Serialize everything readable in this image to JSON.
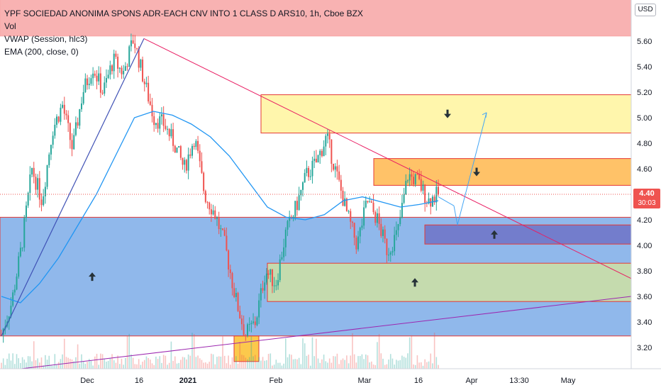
{
  "legend": {
    "title": "YPF SOCIEDAD ANONIMA SPONS ADR-EACH CNV INTO 1 CLASS D ARS10, 1h, Cboe BZX",
    "vol": "Vol",
    "vwap": "VWAP (Session, hlc3)",
    "ema": "EMA (200, close, 0)"
  },
  "currency_button": "USD",
  "last_price": {
    "price": "4.40",
    "countdown": "30:03"
  },
  "colors": {
    "up": "#26a69a",
    "down": "#ef5350",
    "ema": "#2196f3",
    "vwap": "#2196f3",
    "trendline_pink": "#e91e63",
    "trendline_purple": "#9c27b0",
    "trendline_navy": "#3f51b5",
    "zone_red": "#f7a5a5",
    "zone_yellow": "#fff59d",
    "zone_orange": "#ffb74d",
    "zone_blue": "#8ab4ea",
    "zone_indigo": "#6f72c7",
    "zone_olive": "#cfe0a3",
    "zone_yellow_small": "#fbc02d"
  },
  "chart_data": {
    "type": "candlestick",
    "ylim": [
      3.05,
      5.95
    ],
    "y_ticks": [
      "3.20",
      "3.40",
      "3.60",
      "3.80",
      "4.00",
      "4.20",
      "4.40",
      "4.60",
      "4.80",
      "5.00",
      "5.20",
      "5.40",
      "5.60"
    ],
    "x_ticks": [
      "Dec",
      "16",
      "2021",
      "Feb",
      "Mar",
      "16",
      "Apr",
      "13:30",
      "May"
    ],
    "price_path": [
      3.3,
      3.55,
      4.0,
      4.6,
      4.35,
      4.9,
      5.1,
      4.75,
      5.2,
      5.4,
      5.2,
      5.45,
      5.35,
      5.62,
      5.3,
      5.0,
      4.95,
      4.8,
      4.6,
      4.85,
      4.4,
      4.25,
      4.0,
      3.6,
      3.3,
      3.4,
      3.8,
      3.7,
      4.1,
      4.3,
      4.55,
      4.65,
      4.85,
      4.55,
      4.25,
      4.0,
      4.35,
      4.2,
      3.95,
      4.1,
      4.55,
      4.5,
      4.35,
      4.4
    ],
    "ema_path": [
      3.6,
      3.55,
      3.7,
      3.9,
      4.15,
      4.4,
      4.7,
      5.0,
      5.05,
      5.02,
      4.95,
      4.85,
      4.7,
      4.5,
      4.3,
      4.22,
      4.2,
      4.24,
      4.35,
      4.38,
      4.34,
      4.3,
      4.32,
      4.35
    ],
    "vwap_price": 4.35,
    "projection": [
      [
        4.38,
        4.31
      ],
      [
        4.31,
        4.16
      ],
      [
        4.16,
        5.04
      ]
    ],
    "zones": [
      {
        "name": "red-zone",
        "top": 5.95,
        "bottom": 5.64,
        "label": ""
      },
      {
        "name": "yellow-resistance-zone",
        "top": 5.18,
        "bottom": 4.88,
        "arrow": "down"
      },
      {
        "name": "orange-resistance-zone",
        "top": 4.68,
        "bottom": 4.47,
        "arrow": "down"
      },
      {
        "name": "blue-support-zone",
        "top": 4.22,
        "bottom": 3.29,
        "arrow": "up"
      },
      {
        "name": "indigo-support-zone",
        "top": 4.16,
        "bottom": 4.01,
        "arrow": "up"
      },
      {
        "name": "olive-support-zone",
        "top": 3.86,
        "bottom": 3.56,
        "arrow": "up"
      },
      {
        "name": "small-yellow-zone",
        "top": 3.29,
        "bottom": 3.09
      }
    ]
  }
}
